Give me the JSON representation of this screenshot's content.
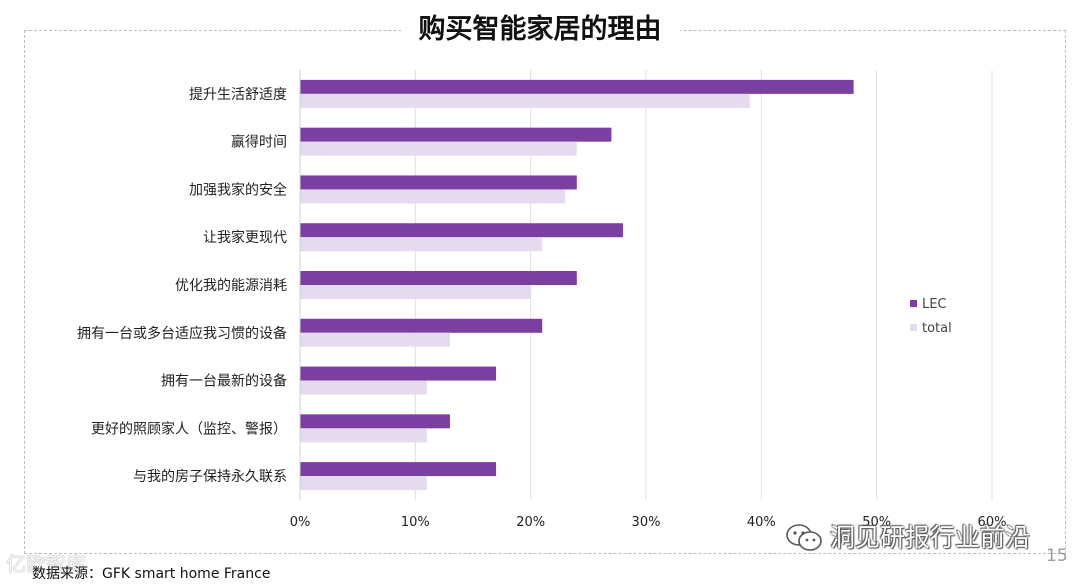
{
  "page": {
    "title": "购买智能家居的理由",
    "source": "数据来源：GFK smart home France",
    "page_number": "15",
    "watermark_text": "洞见研报行业前沿",
    "watermark_text2": "亿欧智库",
    "watermark_icon": "wechat-icon"
  },
  "colors": {
    "LEC": "#7a3fa0",
    "total": "#e6dbee",
    "grid": "#e0e0e0",
    "axis": "#d0d0d0",
    "text": "#222222"
  },
  "chart_data": {
    "type": "bar",
    "orientation": "horizontal",
    "title": "购买智能家居的理由",
    "categories": [
      "提升生活舒适度",
      "赢得时间",
      "加强我家的安全",
      "让我家更现代",
      "优化我的能源消耗",
      "拥有一台或多台适应我习惯的设备",
      "拥有一台最新的设备",
      "更好的照顾家人（监控、警报）",
      "与我的房子保持永久联系"
    ],
    "series": [
      {
        "name": "LEC",
        "values": [
          48,
          27,
          24,
          28,
          24,
          21,
          17,
          13,
          17
        ]
      },
      {
        "name": "total",
        "values": [
          39,
          24,
          23,
          21,
          20,
          13,
          11,
          11,
          11
        ]
      }
    ],
    "xlim": [
      0,
      60
    ],
    "xticks": [
      "0%",
      "10%",
      "20%",
      "30%",
      "40%",
      "50%",
      "60%"
    ],
    "grid": true,
    "legend": "right"
  }
}
